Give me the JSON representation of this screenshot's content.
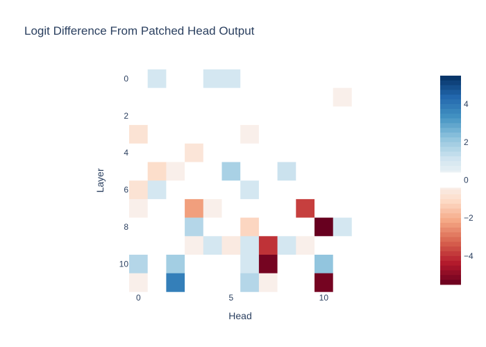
{
  "chart_data": {
    "type": "heatmap",
    "title": "Logit Difference From Patched Head Output",
    "xlabel": "Head",
    "ylabel": "Layer",
    "x_tickvals": [
      0,
      5,
      10
    ],
    "y_tickvals": [
      0,
      2,
      4,
      6,
      8,
      10
    ],
    "x_range": [
      -0.5,
      11.5
    ],
    "y_range": [
      -0.5,
      11.5
    ],
    "y_reversed": true,
    "colorscale": "RdBu",
    "zmin": -5.5,
    "zmax": 5.5,
    "colorbar_tickvals": [
      -4,
      -2,
      0,
      2,
      4
    ],
    "z": [
      [
        0,
        1.0,
        0,
        0,
        1.0,
        1.0,
        0,
        0,
        0,
        0,
        0,
        0
      ],
      [
        0,
        0,
        0,
        0,
        0,
        0,
        0,
        0,
        0,
        0,
        0,
        -0.3
      ],
      [
        0,
        0,
        0,
        0,
        0,
        0,
        0,
        0,
        0,
        0,
        0,
        0
      ],
      [
        -0.8,
        0,
        0,
        0,
        0,
        0,
        -0.3,
        0,
        0,
        0,
        0,
        0
      ],
      [
        0,
        0,
        0,
        -0.7,
        0,
        0,
        0,
        0,
        0,
        0,
        0,
        0
      ],
      [
        0,
        -1.0,
        -0.3,
        0,
        0,
        1.8,
        0,
        0,
        1.2,
        0,
        0,
        0
      ],
      [
        -0.8,
        1.0,
        0,
        0,
        0,
        0,
        1.0,
        0,
        0,
        0,
        0,
        0
      ],
      [
        -0.3,
        0,
        0,
        -2.3,
        -0.3,
        0,
        0,
        0,
        0,
        -3.8,
        0,
        0
      ],
      [
        0,
        0,
        0,
        1.6,
        0,
        0,
        -1.2,
        0,
        0,
        0,
        -5.5,
        1.0
      ],
      [
        0,
        0,
        0,
        -0.3,
        1.0,
        -0.5,
        1.0,
        -4.0,
        1.0,
        -0.3,
        0,
        0
      ],
      [
        1.6,
        0,
        1.9,
        0,
        0,
        0,
        1.0,
        -5.3,
        0,
        0,
        2.2,
        0
      ],
      [
        -0.3,
        0,
        3.8,
        0,
        0,
        0,
        1.6,
        -0.3,
        0,
        0,
        -5.3,
        0
      ]
    ]
  }
}
